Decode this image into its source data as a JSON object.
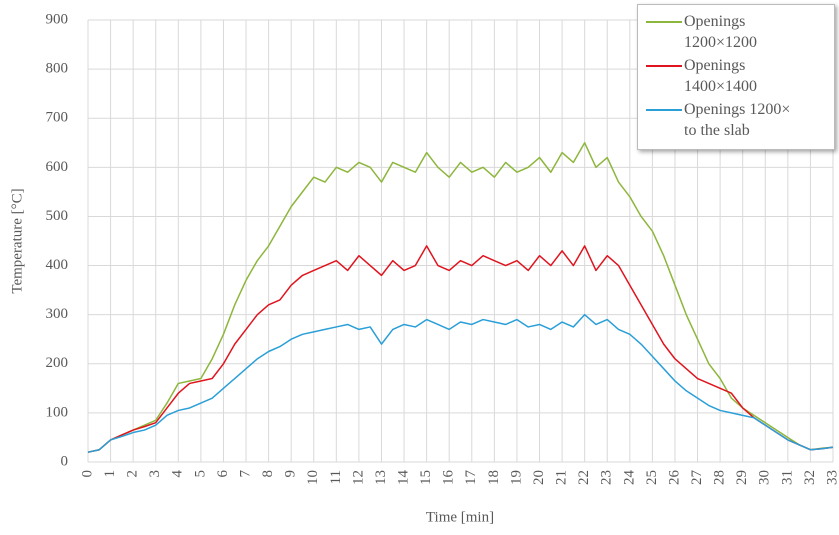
{
  "chart_data": {
    "type": "line",
    "x_label": "Time [min]",
    "y_label": "Temperature [°C]",
    "x": [
      0,
      0.5,
      1,
      1.5,
      2,
      2.5,
      3,
      3.5,
      4,
      4.5,
      5,
      5.5,
      6,
      6.5,
      7,
      7.5,
      8,
      8.5,
      9,
      9.5,
      10,
      10.5,
      11,
      11.5,
      12,
      12.5,
      13,
      13.5,
      14,
      14.5,
      15,
      15.5,
      16,
      16.5,
      17,
      17.5,
      18,
      18.5,
      19,
      19.5,
      20,
      20.5,
      21,
      21.5,
      22,
      22.5,
      23,
      23.5,
      24,
      24.5,
      25,
      25.5,
      26,
      26.5,
      27,
      27.5,
      28,
      28.5,
      29,
      29.5,
      30,
      30.5,
      31,
      31.5,
      32,
      32.5,
      33
    ],
    "series": [
      {
        "name": "Openings 1200×1200",
        "color": "#8db63c",
        "values": [
          20,
          25,
          45,
          55,
          65,
          75,
          85,
          120,
          160,
          165,
          170,
          210,
          260,
          320,
          370,
          410,
          440,
          480,
          520,
          550,
          580,
          570,
          600,
          590,
          610,
          600,
          570,
          610,
          600,
          590,
          630,
          600,
          580,
          610,
          590,
          600,
          580,
          610,
          590,
          600,
          620,
          590,
          630,
          610,
          650,
          600,
          620,
          570,
          540,
          500,
          470,
          420,
          360,
          300,
          250,
          200,
          170,
          130,
          110,
          95,
          80,
          65,
          50,
          35,
          25,
          28,
          30
        ]
      },
      {
        "name": "Openings 1400×1400",
        "color": "#e0141e",
        "values": [
          20,
          25,
          45,
          55,
          65,
          72,
          80,
          110,
          140,
          160,
          165,
          170,
          200,
          240,
          270,
          300,
          320,
          330,
          360,
          380,
          390,
          400,
          410,
          390,
          420,
          400,
          380,
          410,
          390,
          400,
          440,
          400,
          390,
          410,
          400,
          420,
          410,
          400,
          410,
          390,
          420,
          400,
          430,
          400,
          440,
          390,
          420,
          400,
          360,
          320,
          280,
          240,
          210,
          190,
          170,
          160,
          150,
          140,
          110,
          90,
          75,
          60,
          45,
          35,
          25,
          27,
          30
        ]
      },
      {
        "name": "Openings 1200× to the slab",
        "color": "#2a9fd8",
        "values": [
          20,
          25,
          45,
          52,
          60,
          65,
          75,
          95,
          105,
          110,
          120,
          130,
          150,
          170,
          190,
          210,
          225,
          235,
          250,
          260,
          265,
          270,
          275,
          280,
          270,
          275,
          240,
          270,
          280,
          275,
          290,
          280,
          270,
          285,
          280,
          290,
          285,
          280,
          290,
          275,
          280,
          270,
          285,
          275,
          300,
          280,
          290,
          270,
          260,
          240,
          215,
          190,
          165,
          145,
          130,
          115,
          105,
          100,
          95,
          90,
          75,
          60,
          45,
          35,
          25,
          27,
          30
        ]
      }
    ],
    "xlim": [
      0,
      33
    ],
    "xticks": [
      0,
      1,
      2,
      3,
      4,
      5,
      6,
      7,
      8,
      9,
      10,
      11,
      12,
      13,
      14,
      15,
      16,
      17,
      18,
      19,
      20,
      21,
      22,
      23,
      24,
      25,
      26,
      27,
      28,
      29,
      30,
      31,
      32,
      33
    ],
    "ylim": [
      0,
      900
    ],
    "yticks": [
      0,
      100,
      200,
      300,
      400,
      500,
      600,
      700,
      800,
      900
    ],
    "grid": true,
    "legend": "upper right"
  }
}
